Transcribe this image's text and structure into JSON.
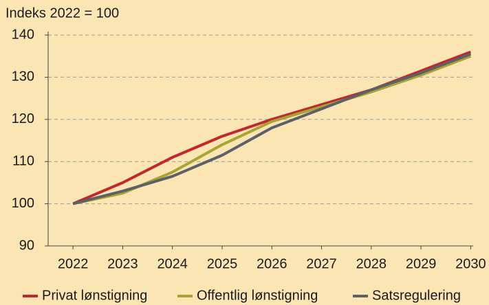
{
  "chart_data": {
    "type": "line",
    "ylabel": "Indeks 2022 = 100",
    "x": [
      2022,
      2023,
      2024,
      2025,
      2026,
      2027,
      2028,
      2029,
      2030
    ],
    "series": [
      {
        "name": "Privat lønstigning",
        "color": "#c1272d",
        "values": [
          100,
          105,
          111,
          116,
          120,
          123.5,
          127,
          131.5,
          136
        ]
      },
      {
        "name": "Offentlig lønstigning",
        "color": "#a9a333",
        "values": [
          100,
          102.5,
          107.5,
          114,
          119.5,
          123,
          126.5,
          130.5,
          135
        ]
      },
      {
        "name": "Satsregulering",
        "color": "#5c6068",
        "values": [
          100,
          103,
          106.5,
          111.5,
          118,
          122.5,
          127,
          131,
          135.5
        ]
      }
    ],
    "xlim": [
      2021.5,
      2030.05
    ],
    "xticks": [
      2022,
      2023,
      2024,
      2025,
      2026,
      2027,
      2028,
      2029,
      2030
    ],
    "ylim": [
      90,
      140
    ],
    "yticks": [
      90,
      100,
      110,
      120,
      130,
      140
    ],
    "grid": true,
    "legend": "bottom"
  }
}
